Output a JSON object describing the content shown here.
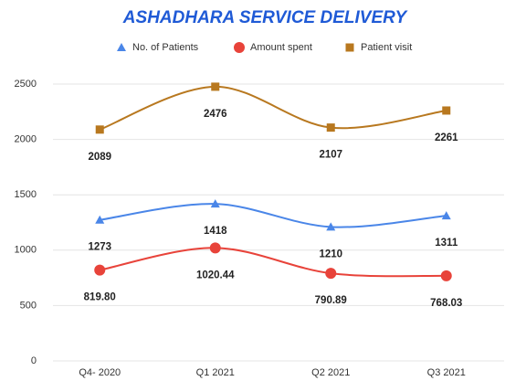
{
  "chart_data": {
    "type": "line",
    "title": "ASHADHARA SERVICE DELIVERY",
    "categories": [
      "Q4- 2020",
      "Q1 2021",
      "Q2 2021",
      "Q3 2021"
    ],
    "series": [
      {
        "name": "No. of Patients",
        "color": "#4a86e8",
        "marker": "triangle",
        "values": [
          1273,
          1418,
          1210,
          1311
        ]
      },
      {
        "name": "Amount spent",
        "color": "#e8433a",
        "marker": "circle",
        "values": [
          819.8,
          1020.44,
          790.89,
          768.03
        ],
        "value_labels": [
          "819.80",
          "1020.44",
          "790.89",
          "768.03"
        ]
      },
      {
        "name": "Patient visit",
        "color": "#b8781f",
        "marker": "square",
        "values": [
          2089,
          2476,
          2107,
          2261
        ]
      }
    ],
    "ylim": [
      0,
      2500
    ],
    "yticks": [
      0,
      500,
      1000,
      1500,
      2000,
      2500
    ],
    "grid": true,
    "legend": "top"
  }
}
